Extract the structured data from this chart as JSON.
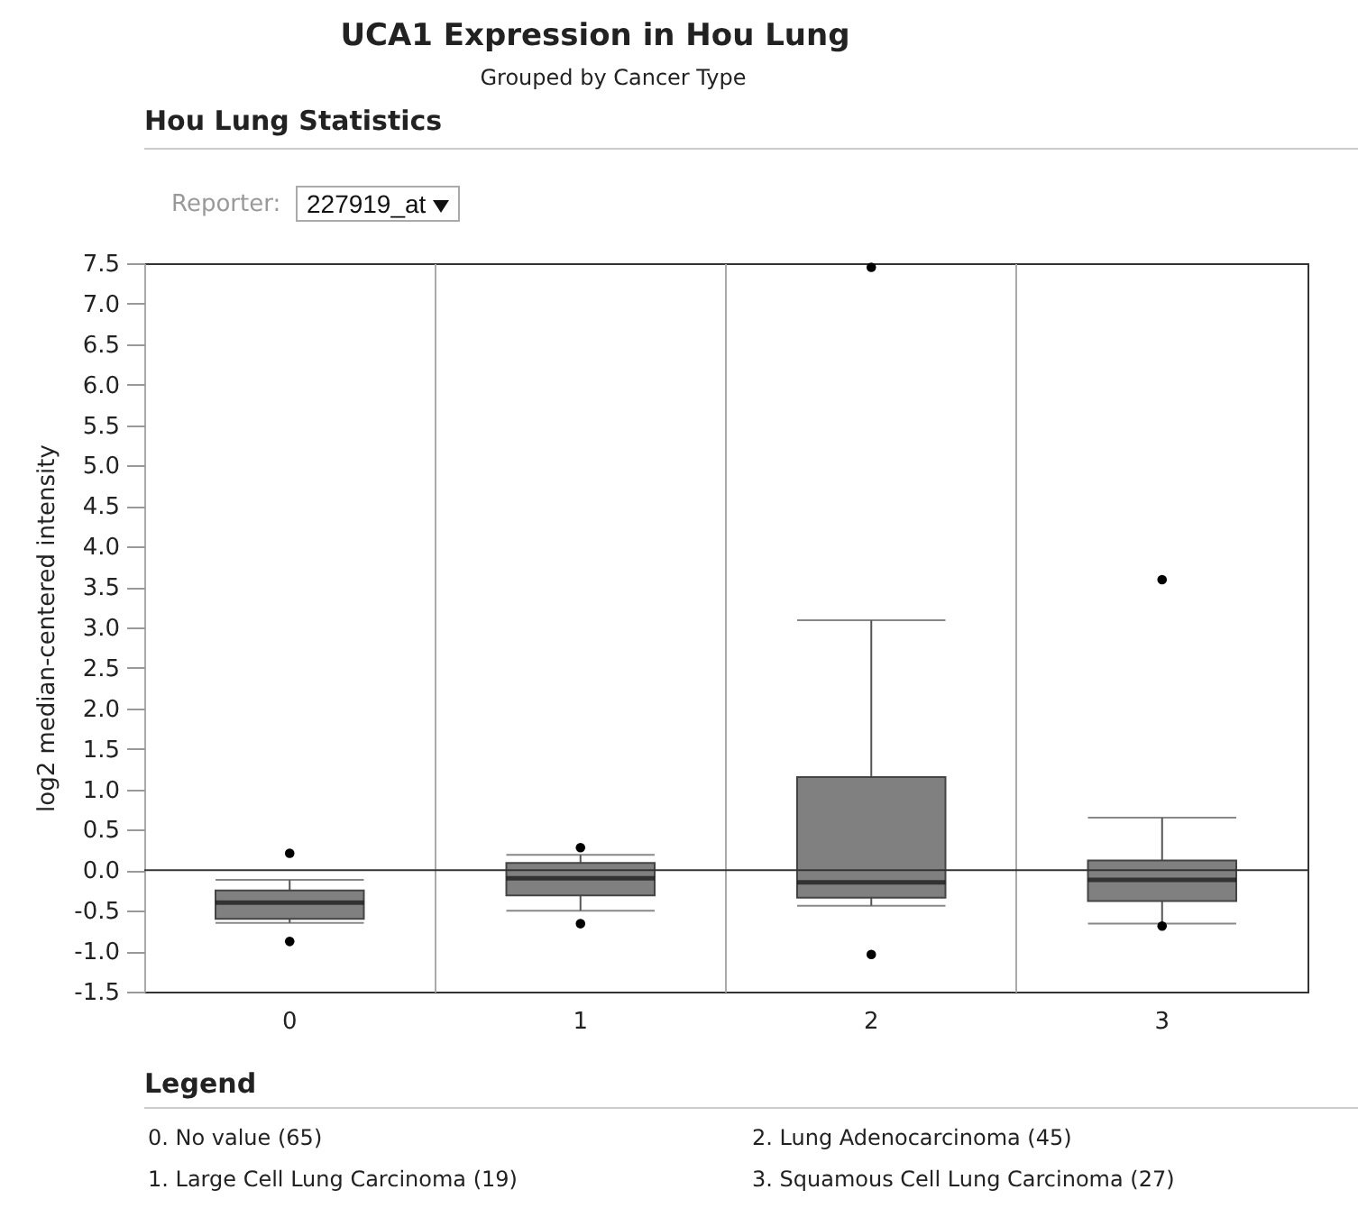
{
  "chart_data": {
    "type": "box",
    "title": "UCA1 Expression in Hou Lung",
    "subtitle": "Grouped by Cancer Type",
    "ylabel": "log2 median-centered intensity",
    "categories": [
      "0",
      "1",
      "2",
      "3"
    ],
    "color": "#808080",
    "boxes": [
      {
        "low": -0.65,
        "q1": -0.6,
        "median": -0.4,
        "q3": -0.25,
        "high": -0.12,
        "outliers": [
          0.21,
          -0.88
        ]
      },
      {
        "low": -0.5,
        "q1": -0.31,
        "median": -0.1,
        "q3": 0.09,
        "high": 0.19,
        "outliers": [
          0.28,
          -0.66
        ]
      },
      {
        "low": -0.44,
        "q1": -0.34,
        "median": -0.15,
        "q3": 1.15,
        "high": 3.09,
        "outliers": [
          7.45,
          -1.04
        ]
      },
      {
        "low": -0.66,
        "q1": -0.38,
        "median": -0.12,
        "q3": 0.12,
        "high": 0.65,
        "outliers": [
          3.59,
          -0.69
        ]
      }
    ],
    "ylim": [
      -1.5,
      7.5
    ],
    "yticks": [
      -1.5,
      {
        "value": -1,
        "label": "-1.0"
      },
      -0.5,
      {
        "value": 0,
        "label": "0.0"
      },
      0.5,
      {
        "value": 1,
        "label": "1.0"
      },
      1.5,
      {
        "value": 2,
        "label": "2.0"
      },
      2.5,
      {
        "value": 3,
        "label": "3.0"
      },
      3.5,
      {
        "value": 4,
        "label": "4.0"
      },
      4.5,
      {
        "value": 5,
        "label": "5.0"
      },
      5.5,
      {
        "value": 6,
        "label": "6.0"
      },
      6.5,
      {
        "value": 7,
        "label": "7.0"
      },
      7.5
    ],
    "grid": "x",
    "ref_lines": [
      {
        "axis": "y",
        "value": 0,
        "color": "#333333"
      }
    ],
    "annotations": [
      "Hou Lung Statistics",
      "Reporter:",
      "227919_at",
      "Legend",
      "0. No value (65)",
      "1. Large Cell Lung Carcinoma (19)",
      "2. Lung Adenocarcinoma (45)",
      "3. Squamous Cell Lung Carcinoma (27)"
    ]
  }
}
